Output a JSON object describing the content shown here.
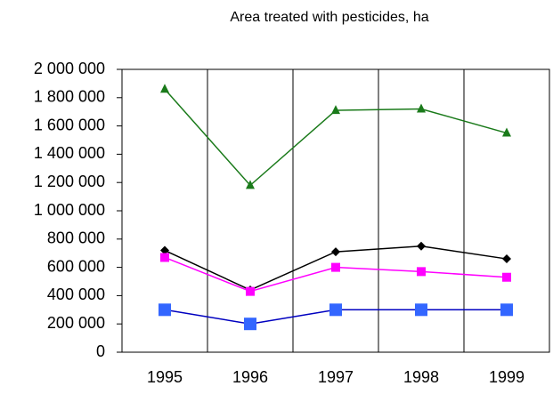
{
  "chart_data": {
    "type": "line",
    "title": "Area treated with pesticides, ha",
    "categories": [
      "1995",
      "1996",
      "1997",
      "1998",
      "1999"
    ],
    "series": [
      {
        "color": "#1a7a1a",
        "marker": "triangle",
        "values": [
          1860000,
          1180000,
          1710000,
          1720000,
          1550000
        ]
      },
      {
        "color": "#000000",
        "marker": "diamond",
        "values": [
          720000,
          440000,
          710000,
          750000,
          660000
        ]
      },
      {
        "color": "#ff00ff",
        "marker": "square",
        "values": [
          670000,
          430000,
          600000,
          570000,
          530000
        ]
      },
      {
        "color": "#0000c0",
        "marker": "bigsquare",
        "markerFill": "#3366ff",
        "values": [
          300000,
          200000,
          300000,
          300000,
          300000
        ]
      }
    ],
    "ylim": [
      0,
      2000000
    ],
    "yticks": [
      0,
      {
        "value": 200000,
        "label": "200 000"
      },
      {
        "value": 400000,
        "label": "400 000"
      },
      {
        "value": 600000,
        "label": "600 000"
      },
      {
        "value": 800000,
        "label": "800 000"
      },
      {
        "value": 1000000,
        "label": "1 000 000"
      },
      {
        "value": 1200000,
        "label": "1 200 000"
      },
      {
        "value": 1400000,
        "label": "1 400 000"
      },
      {
        "value": 1600000,
        "label": "1 600 000"
      },
      {
        "value": 1800000,
        "label": "1 800 000"
      },
      {
        "value": 2000000,
        "label": "2 000 000"
      }
    ],
    "grid": true
  }
}
